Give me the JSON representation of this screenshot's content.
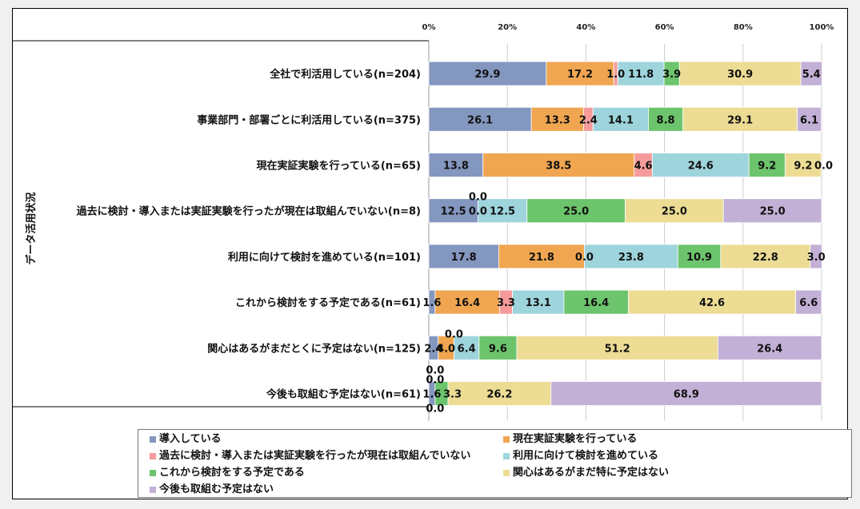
{
  "chart_data": {
    "type": "bar",
    "orientation": "horizontal-stacked-100",
    "ylabel": "データ活用状況",
    "xticks": [
      "0%",
      "20%",
      "40%",
      "60%",
      "80%",
      "100%"
    ],
    "xlim": [
      0,
      100
    ],
    "legend_placement": "bottom",
    "categories": [
      "全社で利活用している(n=204)",
      "事業部門・部署ごとに利活用している(n=375)",
      "現在実証実験を行っている(n=65)",
      "過去に検討・導入または実証実験を行ったが現在は取組んでいない(n=8)",
      "利用に向けて検討を進めている(n=101)",
      "これから検討をする予定である(n=61)",
      "関心はあるがまだとくに予定はない(n=125)",
      "今後も取組む予定はない(n=61)"
    ],
    "series": [
      {
        "name": "導入している",
        "color": "#8497bf",
        "values": [
          29.9,
          26.1,
          13.8,
          12.5,
          17.8,
          1.6,
          2.4,
          1.6
        ]
      },
      {
        "name": "現在実証実験を行っている",
        "color": "#f0a650",
        "values": [
          17.2,
          13.3,
          38.5,
          0.0,
          21.8,
          16.4,
          4.0,
          0.0
        ]
      },
      {
        "name": "過去に検討・導入または実証実験を行ったが現在は取組んでいない",
        "color": "#f59b9b",
        "values": [
          1.0,
          2.4,
          4.6,
          0.0,
          0.0,
          3.3,
          0.0,
          0.0
        ]
      },
      {
        "name": "利用に向けて検討を進めている",
        "color": "#9ed4dc",
        "values": [
          11.8,
          14.1,
          24.6,
          12.5,
          23.8,
          13.1,
          6.4,
          0.0
        ]
      },
      {
        "name": "これから検討をする予定である",
        "color": "#6cc46c",
        "values": [
          3.9,
          8.8,
          9.2,
          25.0,
          10.9,
          16.4,
          9.6,
          3.3
        ]
      },
      {
        "name": "関心はあるがまだ特に予定はない",
        "color": "#ecdc94",
        "values": [
          30.9,
          29.1,
          9.2,
          25.0,
          22.8,
          42.6,
          51.2,
          26.2
        ]
      },
      {
        "name": "今後も取組む予定はない",
        "color": "#c3b0d6",
        "values": [
          5.4,
          6.1,
          0.0,
          25.0,
          3.0,
          6.6,
          26.4,
          68.9
        ]
      }
    ]
  }
}
